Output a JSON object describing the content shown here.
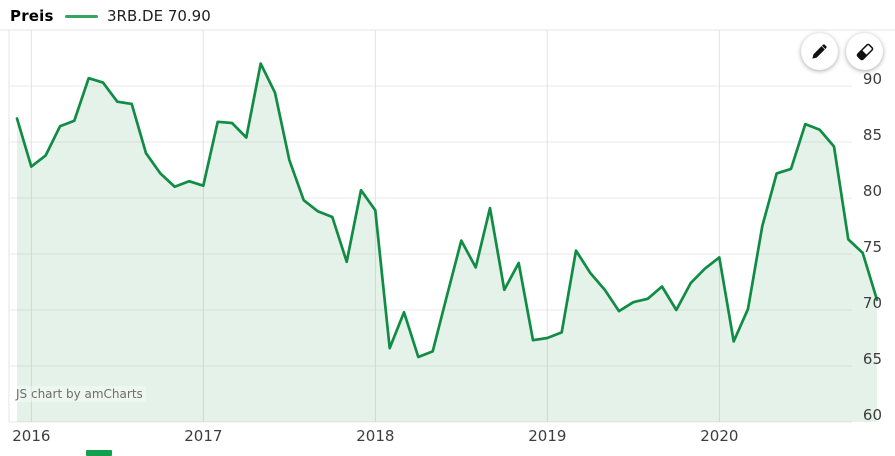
{
  "header": {
    "title": "Preis",
    "legend": {
      "series_label": "3RB.DE 70.90",
      "marker_color": "#33a55f"
    }
  },
  "toolbar": {
    "draw_button": {
      "icon": "pencil-icon"
    },
    "erase_button": {
      "icon": "eraser-icon"
    }
  },
  "watermark": "JS chart by amCharts",
  "colors": {
    "line": "#108c44",
    "fill": "rgba(53,154,88,0.13)",
    "grid_horizontal": "#eaeaea",
    "grid_vertical": "#e2e2e2",
    "border": "#e4e4e4",
    "axis_text": "#3d3d3d",
    "partial_marker": "#12a04e"
  },
  "chart_data": {
    "type": "area",
    "title": "Preis",
    "series": [
      {
        "name": "3RB.DE",
        "current_value": "70.90",
        "values": [
          87.1,
          82.8,
          83.8,
          86.4,
          86.9,
          90.7,
          90.3,
          88.6,
          88.4,
          84.0,
          82.2,
          81.0,
          81.5,
          81.1,
          86.8,
          86.7,
          85.4,
          92.0,
          89.4,
          83.4,
          79.8,
          78.8,
          78.3,
          74.3,
          80.7,
          78.9,
          66.6,
          69.8,
          65.8,
          66.3,
          71.3,
          76.2,
          73.8,
          79.1,
          71.8,
          74.2,
          67.3,
          67.5,
          68.0,
          75.3,
          73.3,
          71.8,
          69.9,
          70.7,
          71.0,
          72.1,
          70.0,
          72.4,
          73.7,
          74.7,
          67.2,
          70.1,
          77.5,
          82.2,
          82.6,
          86.6,
          86.1,
          84.6,
          76.3,
          75.1,
          70.9
        ]
      }
    ],
    "x_months": [
      "2015-12",
      "2016-01",
      "2016-02",
      "2016-03",
      "2016-04",
      "2016-05",
      "2016-06",
      "2016-07",
      "2016-08",
      "2016-09",
      "2016-10",
      "2016-11",
      "2016-12",
      "2017-01",
      "2017-02",
      "2017-03",
      "2017-04",
      "2017-05",
      "2017-06",
      "2017-07",
      "2017-08",
      "2017-09",
      "2017-10",
      "2017-11",
      "2017-12",
      "2018-01",
      "2018-02",
      "2018-03",
      "2018-04",
      "2018-05",
      "2018-06",
      "2018-07",
      "2018-08",
      "2018-09",
      "2018-10",
      "2018-11",
      "2018-12",
      "2019-01",
      "2019-02",
      "2019-03",
      "2019-04",
      "2019-05",
      "2019-06",
      "2019-07",
      "2019-08",
      "2019-09",
      "2019-10",
      "2019-11",
      "2019-12",
      "2020-01",
      "2020-02",
      "2020-03",
      "2020-04",
      "2020-05",
      "2020-06",
      "2020-07",
      "2020-08",
      "2020-09",
      "2020-10",
      "2020-11",
      "2020-12"
    ],
    "x_tick_labels": [
      "2016",
      "2017",
      "2018",
      "2019",
      "2020"
    ],
    "y_ticks": [
      90,
      85,
      80,
      75,
      70,
      65,
      60
    ],
    "ylim": [
      60,
      95
    ],
    "grid": true,
    "legend_position": "top-left"
  }
}
